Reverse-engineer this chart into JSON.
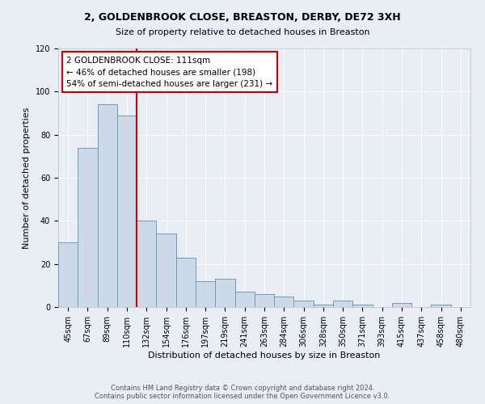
{
  "title": "2, GOLDENBROOK CLOSE, BREASTON, DERBY, DE72 3XH",
  "subtitle": "Size of property relative to detached houses in Breaston",
  "xlabel": "Distribution of detached houses by size in Breaston",
  "ylabel": "Number of detached properties",
  "bar_labels": [
    "45sqm",
    "67sqm",
    "89sqm",
    "110sqm",
    "132sqm",
    "154sqm",
    "176sqm",
    "197sqm",
    "219sqm",
    "241sqm",
    "263sqm",
    "284sqm",
    "306sqm",
    "328sqm",
    "350sqm",
    "371sqm",
    "393sqm",
    "415sqm",
    "437sqm",
    "458sqm",
    "480sqm"
  ],
  "bar_values": [
    30,
    74,
    94,
    89,
    40,
    34,
    23,
    12,
    13,
    7,
    6,
    5,
    3,
    1,
    3,
    1,
    0,
    2,
    0,
    1,
    0
  ],
  "bar_color": "#ccd9e8",
  "bar_edge_color": "#7099bb",
  "vline_index": 3,
  "vline_color": "#cc0000",
  "annotation_title": "2 GOLDENBROOK CLOSE: 111sqm",
  "annotation_line1": "← 46% of detached houses are smaller (198)",
  "annotation_line2": "54% of semi-detached houses are larger (231) →",
  "annotation_box_facecolor": "#ffffff",
  "annotation_box_edgecolor": "#cc0000",
  "ylim": [
    0,
    120
  ],
  "yticks": [
    0,
    20,
    40,
    60,
    80,
    100,
    120
  ],
  "footer_line1": "Contains HM Land Registry data © Crown copyright and database right 2024.",
  "footer_line2": "Contains public sector information licensed under the Open Government Licence v3.0.",
  "fig_facecolor": "#e8eef4",
  "plot_facecolor": "#e8eef4",
  "grid_color": "#ffffff",
  "title_fontsize": 9,
  "subtitle_fontsize": 8,
  "axis_label_fontsize": 8,
  "tick_fontsize": 7,
  "annotation_fontsize": 7.5,
  "footer_fontsize": 6
}
